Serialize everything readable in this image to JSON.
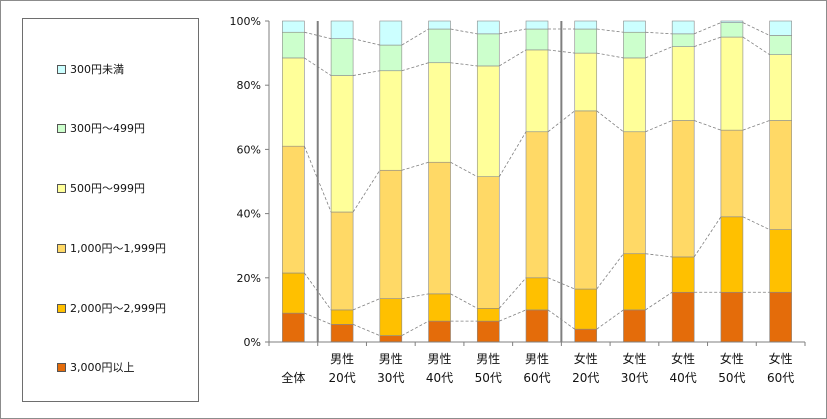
{
  "chart_data": {
    "type": "bar",
    "stacked": true,
    "percent": true,
    "categories": [
      [
        "全体"
      ],
      [
        "男性",
        "20代"
      ],
      [
        "男性",
        "30代"
      ],
      [
        "男性",
        "40代"
      ],
      [
        "男性",
        "50代"
      ],
      [
        "男性",
        "60代"
      ],
      [
        "女性",
        "20代"
      ],
      [
        "女性",
        "30代"
      ],
      [
        "女性",
        "40代"
      ],
      [
        "女性",
        "50代"
      ],
      [
        "女性",
        "60代"
      ]
    ],
    "series": [
      {
        "name": "3,000円以上",
        "color": "#e46c0a",
        "values": [
          9,
          5.5,
          2,
          6.5,
          6.5,
          10,
          4,
          10,
          15.5,
          15.5,
          15.5
        ]
      },
      {
        "name": "2,000円～2,999円",
        "color": "#ffc000",
        "values": [
          12.5,
          4.5,
          11.5,
          8.5,
          4,
          10,
          12.5,
          17.5,
          11,
          23.5,
          19.5
        ]
      },
      {
        "name": "1,000円～1,999円",
        "color": "#ffd966",
        "values": [
          39.5,
          30.5,
          40,
          41,
          41,
          45.5,
          55.5,
          38,
          42.5,
          27,
          34
        ]
      },
      {
        "name": "500円～999円",
        "color": "#ffff99",
        "values": [
          27.5,
          42.5,
          31,
          31,
          34.5,
          25.5,
          18,
          23,
          23,
          29,
          20.5
        ]
      },
      {
        "name": "300円～499円",
        "color": "#ccffcc",
        "values": [
          8,
          11.5,
          8,
          10.5,
          10,
          6.5,
          7.5,
          8,
          4,
          4.5,
          6
        ]
      },
      {
        "name": "300円未満",
        "color": "#ccffff",
        "values": [
          3.5,
          5.5,
          7.5,
          2.5,
          4,
          2.5,
          2.5,
          3.5,
          4,
          0.5,
          4.5
        ]
      }
    ],
    "yticks": [
      "0%",
      "20%",
      "40%",
      "60%",
      "80%",
      "100%"
    ],
    "ylim": [
      0,
      100
    ],
    "group_separators_after": [
      0,
      5
    ],
    "connector_lines": true,
    "legend_position": "left",
    "grid": false
  }
}
